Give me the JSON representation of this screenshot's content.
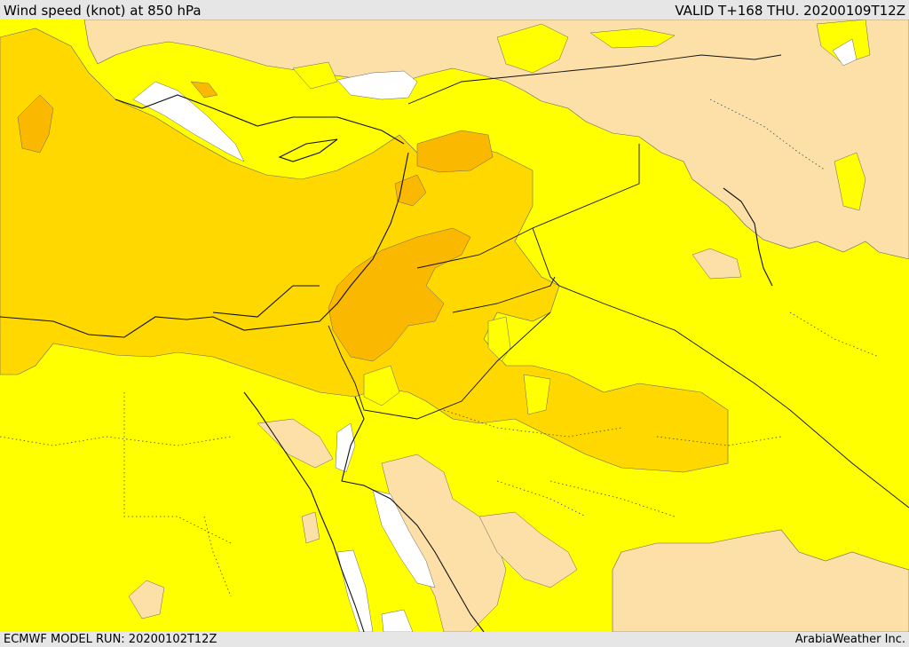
{
  "header": {
    "title": "Wind speed (knot) at 850 hPa",
    "valid": "VALID T+168 THU. 20200109T12Z"
  },
  "footer": {
    "model_run": "ECMWF MODEL RUN: 20200102T12Z",
    "credit": "ArabiaWeather Inc."
  },
  "map": {
    "colors": {
      "calm_white": "#ffffff",
      "light_tan": "#fddfa8",
      "yellow": "#ffff00",
      "gold": "#ffd800",
      "orange": "#fbb800",
      "line": "#333333"
    }
  }
}
